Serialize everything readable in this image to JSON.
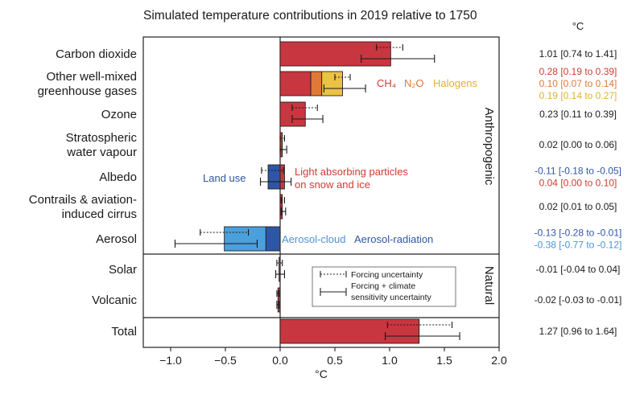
{
  "chart_data": {
    "type": "bar",
    "orientation": "horizontal",
    "title": "Simulated temperature contributions in 2019 relative to 1750",
    "xlabel": "°C",
    "unit_label": "°C",
    "xlim": [
      -1.25,
      2.0
    ],
    "xticks": [
      {
        "value": -1.0,
        "label": "−1.0"
      },
      {
        "value": -0.5,
        "label": "−0.5"
      },
      {
        "value": 0.0,
        "label": "0.0"
      },
      {
        "value": 0.5,
        "label": "0.5"
      },
      {
        "value": 1.0,
        "label": "1.0"
      },
      {
        "value": 1.5,
        "label": "1.5"
      },
      {
        "value": 2.0,
        "label": "2.0"
      }
    ],
    "group_labels": {
      "anthropogenic": "Anthropogenic",
      "natural": "Natural"
    },
    "colors": {
      "co2": "#c8363f",
      "ch4": "#e07838",
      "n2o": "#e07838",
      "halogens": "#ecc245",
      "aerosol_cloud": "#4aa0dc",
      "aerosol_radiation": "#2e56a6",
      "land_use": "#2e56a6",
      "lap": "#c8363f",
      "text_red": "#d23a32",
      "text_orange": "#e07838",
      "text_yellow": "#e0b22c",
      "text_blue": "#2e56a6",
      "text_lightblue": "#4a94d4",
      "text_black": "#1a1a1a"
    },
    "rows": [
      {
        "label": [
          "Carbon dioxide"
        ],
        "segments": [
          {
            "start": 0,
            "end": 1.01,
            "color": "#c8363f"
          }
        ],
        "err_forcing": [
          0.88,
          1.12
        ],
        "err_total": [
          0.74,
          1.41
        ],
        "values": [
          {
            "text": "1.01 [0.74 to 1.41]",
            "color": "#1a1a1a"
          }
        ]
      },
      {
        "label": [
          "Other well-mixed",
          "greenhouse gases"
        ],
        "segments": [
          {
            "start": 0,
            "end": 0.28,
            "color": "#c8363f"
          },
          {
            "start": 0.28,
            "end": 0.38,
            "color": "#e07838"
          },
          {
            "start": 0.38,
            "end": 0.57,
            "color": "#ecc245"
          }
        ],
        "err_forcing": [
          0.5,
          0.64
        ],
        "err_total": [
          0.4,
          0.78
        ],
        "inline_labels": [
          {
            "text": "CH₄",
            "color": "#d23a32"
          },
          {
            "text": "N₂O",
            "color": "#e07838"
          },
          {
            "text": "Halogens",
            "color": "#e0b22c"
          }
        ],
        "values": [
          {
            "text": "0.28 [0.19 to 0.39]",
            "color": "#d23a32"
          },
          {
            "text": "0.10 [0.07 to 0.14]",
            "color": "#e07838"
          },
          {
            "text": "0.19 [0.14 to 0.27]",
            "color": "#e0b22c"
          }
        ]
      },
      {
        "label": [
          "Ozone"
        ],
        "segments": [
          {
            "start": 0,
            "end": 0.23,
            "color": "#c8363f"
          }
        ],
        "err_forcing": [
          0.11,
          0.34
        ],
        "err_total": [
          0.11,
          0.39
        ],
        "values": [
          {
            "text": "0.23 [0.11 to 0.39]",
            "color": "#1a1a1a"
          }
        ]
      },
      {
        "label": [
          "Stratospheric",
          "water vapour"
        ],
        "segments": [
          {
            "start": 0,
            "end": 0.02,
            "color": "#c8363f"
          }
        ],
        "err_forcing": [
          0.0,
          0.04
        ],
        "err_total": [
          0.0,
          0.06
        ],
        "values": [
          {
            "text": "0.02 [0.00 to 0.06]",
            "color": "#1a1a1a"
          }
        ]
      },
      {
        "label": [
          "Albedo"
        ],
        "segments": [
          {
            "start": -0.11,
            "end": 0,
            "color": "#2e56a6"
          },
          {
            "start": 0,
            "end": 0.04,
            "color": "#c8363f"
          }
        ],
        "err_forcing": [
          -0.17,
          0.03
        ],
        "err_total": [
          -0.18,
          0.1
        ],
        "inline_labels": [
          {
            "text": "Land use",
            "color": "#2e56a6"
          },
          {
            "text": "Light absorbing particles",
            "color": "#d23a32"
          },
          {
            "text": "on snow and ice",
            "color": "#d23a32"
          }
        ],
        "values": [
          {
            "text": "-0.11 [-0.18 to -0.05]",
            "color": "#2e56a6"
          },
          {
            "text": "0.04 [0.00 to 0.10]",
            "color": "#d23a32"
          }
        ]
      },
      {
        "label": [
          "Contrails & aviation-",
          "induced cirrus"
        ],
        "segments": [
          {
            "start": 0,
            "end": 0.02,
            "color": "#c8363f"
          }
        ],
        "err_forcing": [
          0.01,
          0.04
        ],
        "err_total": [
          0.01,
          0.05
        ],
        "values": [
          {
            "text": "0.02 [0.01 to 0.05]",
            "color": "#1a1a1a"
          }
        ]
      },
      {
        "label": [
          "Aerosol"
        ],
        "segments": [
          {
            "start": -0.51,
            "end": -0.13,
            "color": "#4aa0dc"
          },
          {
            "start": -0.13,
            "end": 0,
            "color": "#2e56a6"
          }
        ],
        "err_forcing": [
          -0.73,
          -0.29
        ],
        "err_total": [
          -0.96,
          -0.21
        ],
        "inline_labels": [
          {
            "text": "Aerosol-cloud",
            "color": "#4a94d4"
          },
          {
            "text": "Aerosol-radiation",
            "color": "#2e56a6"
          }
        ],
        "values": [
          {
            "text": "-0.13 [-0.28 to -0.01]",
            "color": "#2e56a6"
          },
          {
            "text": "-0.38 [-0.77 to -0.12]",
            "color": "#4a94d4"
          }
        ]
      },
      {
        "label": [
          "Solar"
        ],
        "segments": [
          {
            "start": -0.01,
            "end": 0,
            "color": "#c8363f"
          }
        ],
        "err_forcing": [
          -0.03,
          0.02
        ],
        "err_total": [
          -0.04,
          0.04
        ],
        "values": [
          {
            "text": "-0.01 [-0.04 to 0.04]",
            "color": "#1a1a1a"
          }
        ]
      },
      {
        "label": [
          "Volcanic"
        ],
        "segments": [
          {
            "start": -0.02,
            "end": 0,
            "color": "#c8363f"
          }
        ],
        "err_forcing": [
          -0.03,
          -0.01
        ],
        "err_total": [
          -0.03,
          -0.01
        ],
        "values": [
          {
            "text": "-0.02 [-0.03 to -0.01]",
            "color": "#1a1a1a"
          }
        ]
      },
      {
        "label": [
          "Total"
        ],
        "segments": [
          {
            "start": 0,
            "end": 1.27,
            "color": "#c8363f"
          }
        ],
        "err_forcing": [
          0.98,
          1.57
        ],
        "err_total": [
          0.96,
          1.64
        ],
        "values": [
          {
            "text": "1.27 [0.96 to 1.64]",
            "color": "#1a1a1a"
          }
        ]
      }
    ],
    "legend": {
      "forcing": "Forcing uncertainty",
      "total": [
        "Forcing + climate",
        "sensitivity uncertainty"
      ]
    }
  }
}
